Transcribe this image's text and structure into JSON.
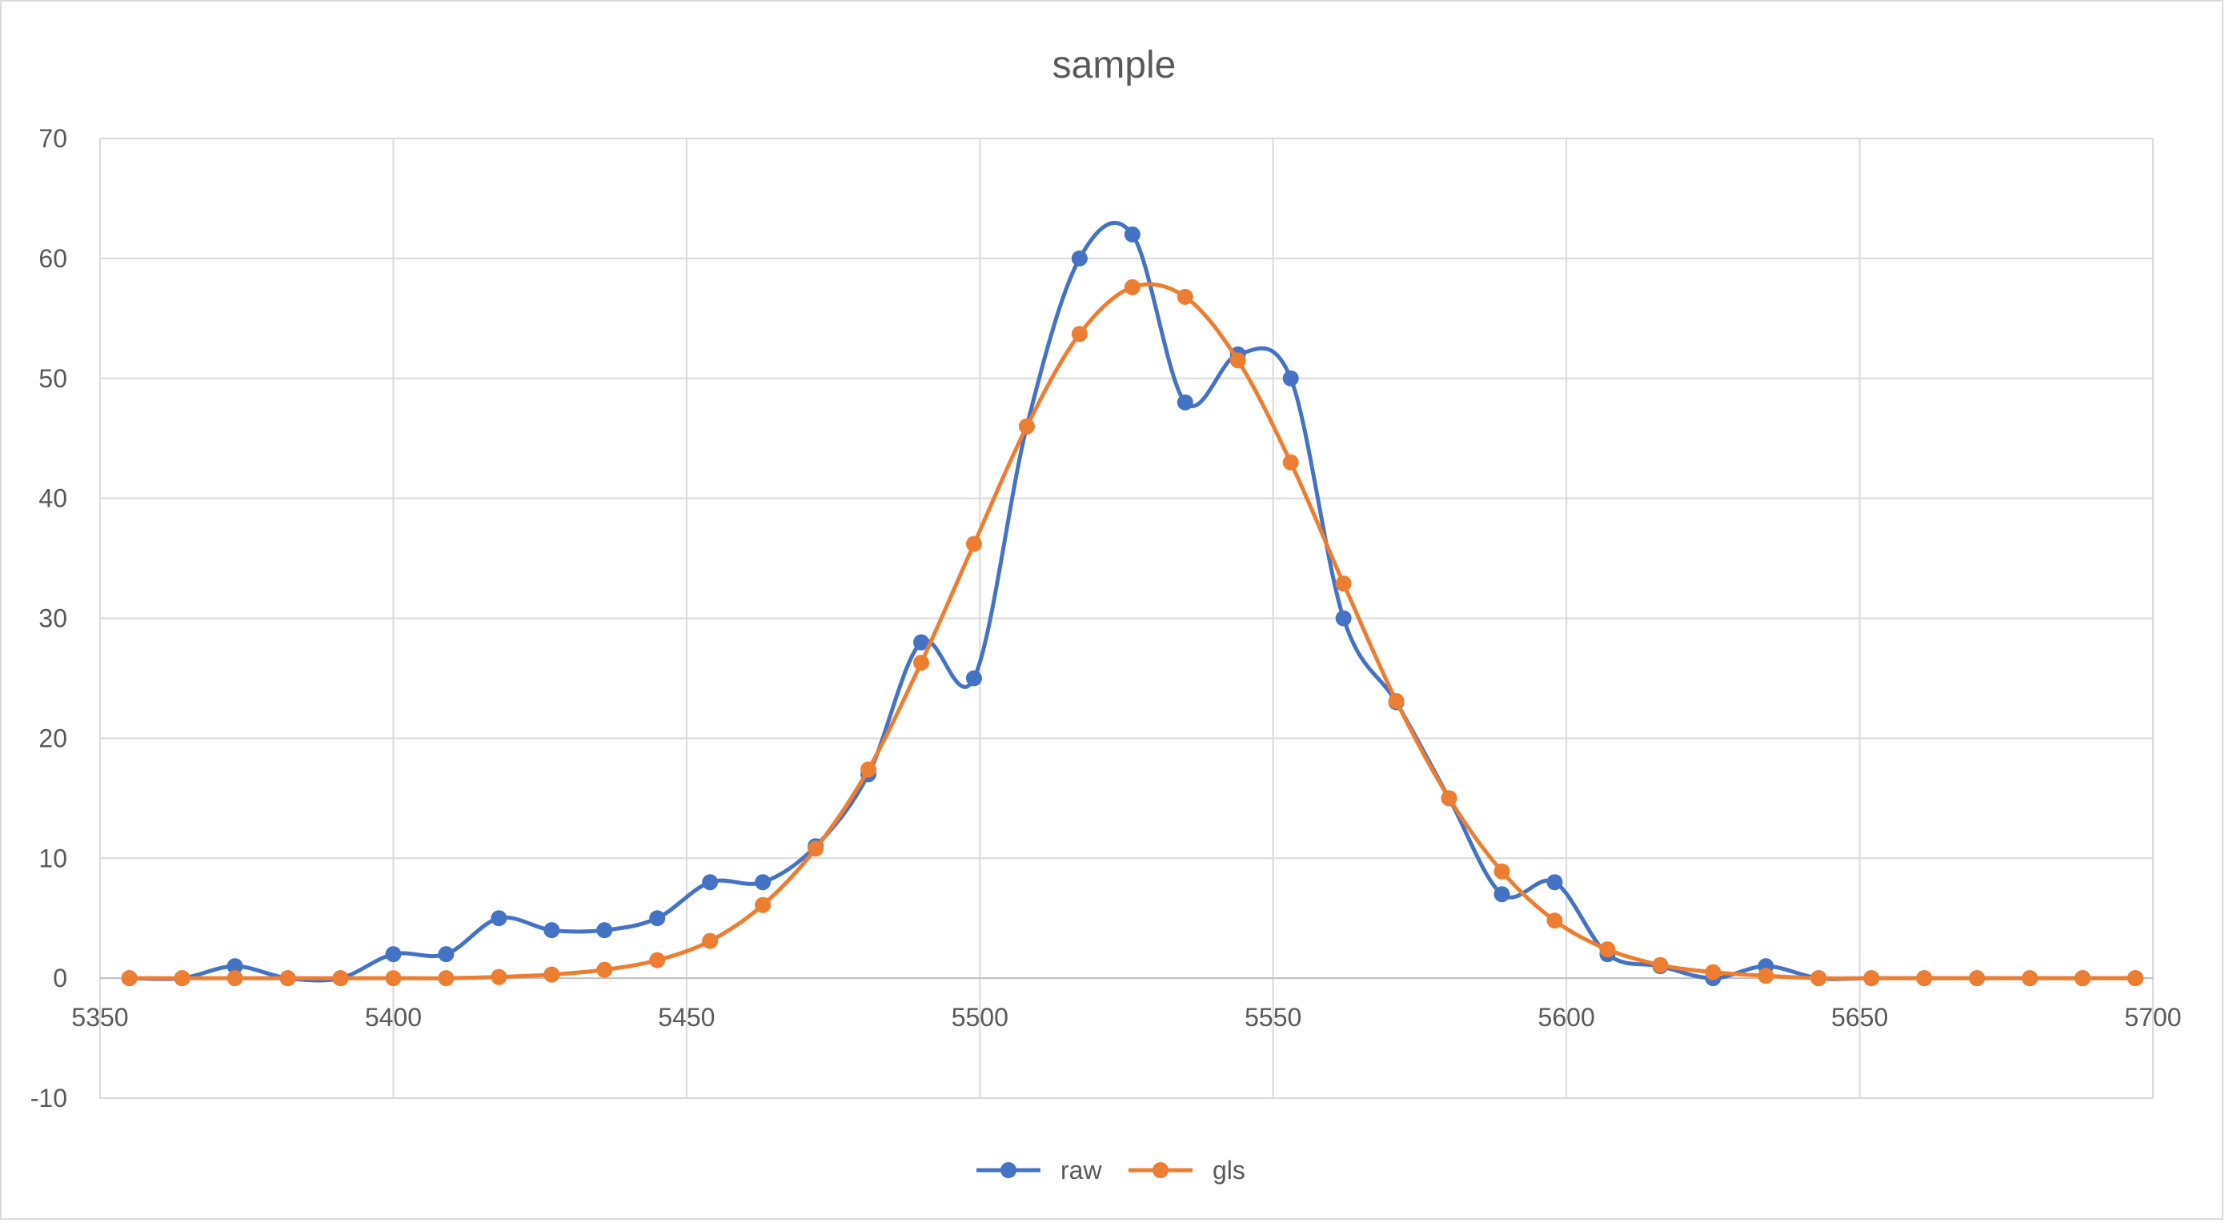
{
  "chart_data": {
    "type": "scatter",
    "title": "sample",
    "xlabel": "",
    "ylabel": "",
    "xlim": [
      5350,
      5700
    ],
    "ylim": [
      -10,
      70
    ],
    "x_ticks": [
      "5350",
      "5400",
      "5450",
      "5500",
      "5550",
      "5600",
      "5650",
      "5700"
    ],
    "y_ticks": [
      "-10",
      "0",
      "10",
      "20",
      "30",
      "40",
      "50",
      "60",
      "70"
    ],
    "grid": true,
    "legend_position": "bottom",
    "smooth_lines": true,
    "series": [
      {
        "name": "raw",
        "color": "#4472c4",
        "x": [
          5355,
          5364,
          5373,
          5382,
          5391,
          5400,
          5409,
          5418,
          5427,
          5436,
          5445,
          5454,
          5463,
          5472,
          5481,
          5490,
          5499,
          5508,
          5517,
          5526,
          5535,
          5544,
          5553,
          5562,
          5571,
          5580,
          5589,
          5598,
          5607,
          5616,
          5625,
          5634,
          5643,
          5652,
          5661,
          5670,
          5679,
          5688,
          5697
        ],
        "y": [
          0,
          0,
          1,
          0,
          0,
          2,
          2,
          5,
          4,
          4,
          5,
          8,
          8,
          11,
          17,
          28,
          25,
          46,
          60,
          62,
          48,
          52,
          50,
          30,
          23,
          15,
          7,
          8,
          2,
          1,
          0,
          1,
          0,
          0,
          0,
          0,
          0,
          0,
          0
        ]
      },
      {
        "name": "gls",
        "color": "#ed7d31",
        "x": [
          5355,
          5364,
          5373,
          5382,
          5391,
          5400,
          5409,
          5418,
          5427,
          5436,
          5445,
          5454,
          5463,
          5472,
          5481,
          5490,
          5499,
          5508,
          5517,
          5526,
          5535,
          5544,
          5553,
          5562,
          5571,
          5580,
          5589,
          5598,
          5607,
          5616,
          5625,
          5634,
          5643,
          5652,
          5661,
          5670,
          5679,
          5688,
          5697
        ],
        "y": [
          0,
          0,
          0,
          0,
          0,
          0,
          0,
          0.1,
          0.3,
          0.7,
          1.5,
          3.1,
          6.1,
          10.8,
          17.4,
          26.3,
          36.2,
          46,
          53.7,
          57.6,
          56.8,
          51.5,
          43,
          32.9,
          23.1,
          15,
          8.9,
          4.8,
          2.4,
          1.1,
          0.5,
          0.2,
          0,
          0,
          0,
          0,
          0,
          0,
          0
        ]
      }
    ]
  }
}
